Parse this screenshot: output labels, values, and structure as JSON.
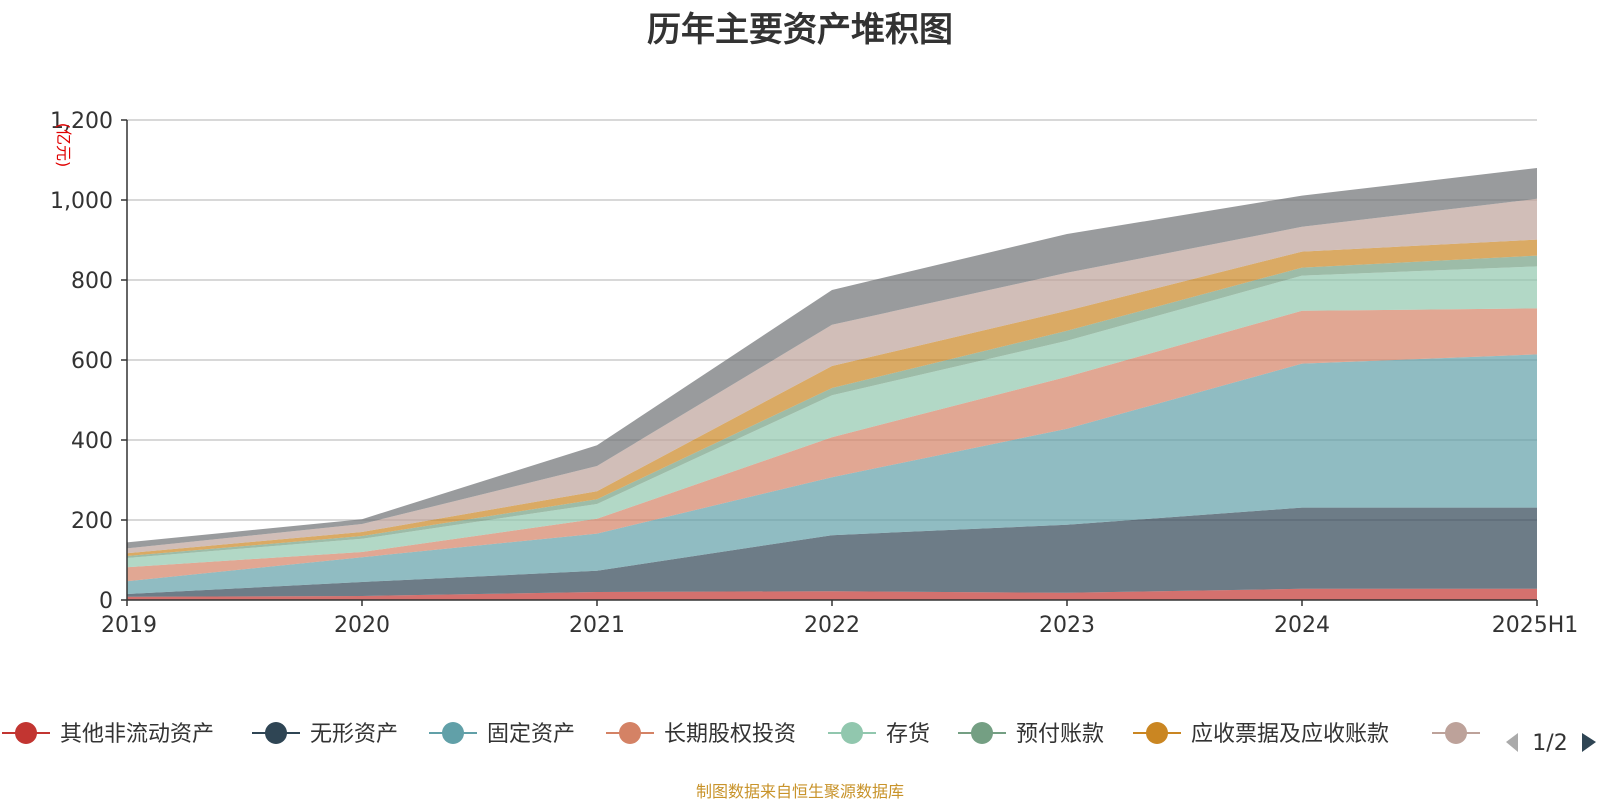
{
  "source_note": "制图数据来自恒生聚源数据库",
  "legend_pager": "1/2",
  "chart_data": {
    "type": "area",
    "stacked": true,
    "title": "历年主要资产堆积图",
    "ylabel": "亿元",
    "ylabel_unit_display": "(亿元)",
    "xlabel": "",
    "categories": [
      "2019",
      "2020",
      "2021",
      "2022",
      "2023",
      "2024",
      "2025H1"
    ],
    "ylim": [
      0,
      1200
    ],
    "yticks": [
      0,
      200,
      400,
      600,
      800,
      1000,
      1200
    ],
    "ytick_labels": [
      "0",
      "200",
      "400",
      "600",
      "800",
      "1,000",
      "1,200"
    ],
    "grid": true,
    "series": [
      {
        "name": "其他非流动资产",
        "color": "#c23531",
        "values": [
          8,
          10,
          20,
          22,
          18,
          28,
          28
        ]
      },
      {
        "name": "无形资产",
        "color": "#2f4554",
        "values": [
          7,
          35,
          53,
          140,
          170,
          203,
          203
        ]
      },
      {
        "name": "固定资产",
        "color": "#61a0a8",
        "values": [
          32,
          62,
          93,
          145,
          240,
          360,
          383
        ]
      },
      {
        "name": "长期股权投资",
        "color": "#d48265",
        "values": [
          35,
          13,
          37,
          100,
          130,
          132,
          115
        ]
      },
      {
        "name": "存货",
        "color": "#91c7ae",
        "values": [
          23,
          33,
          37,
          105,
          90,
          88,
          105
        ]
      },
      {
        "name": "预付账款",
        "color": "#749f83",
        "values": [
          5,
          7,
          12,
          18,
          25,
          20,
          27
        ]
      },
      {
        "name": "应收票据及应收账款",
        "color": "#ca8622",
        "values": [
          7,
          10,
          20,
          55,
          50,
          40,
          40
        ]
      },
      {
        "name": "",
        "color": "#bda29a",
        "values": [
          12,
          20,
          63,
          103,
          95,
          62,
          102
        ]
      },
      {
        "name": "",
        "color": "#6e7074",
        "values": [
          15,
          12,
          52,
          87,
          97,
          78,
          77
        ]
      }
    ],
    "legend_position": "bottom"
  }
}
